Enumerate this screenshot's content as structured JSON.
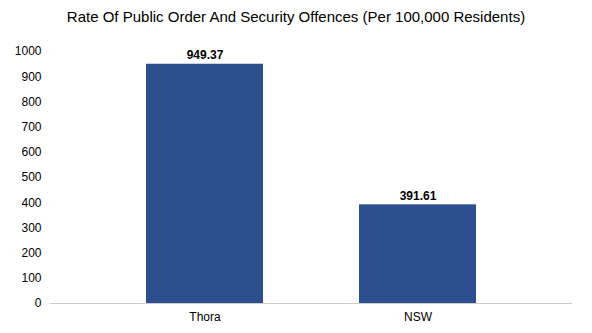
{
  "chart_data": {
    "type": "bar",
    "title": "Rate Of Public Order And Security Offences (Per 100,000 Residents)",
    "categories": [
      "Thora",
      "NSW"
    ],
    "values": [
      949.37,
      391.61
    ],
    "color": "#2e4f8f",
    "ylim": [
      0,
      1000
    ],
    "yticks": [
      0,
      100,
      200,
      300,
      400,
      500,
      600,
      700,
      800,
      900,
      1000
    ],
    "grid": false,
    "data_labels": true
  }
}
